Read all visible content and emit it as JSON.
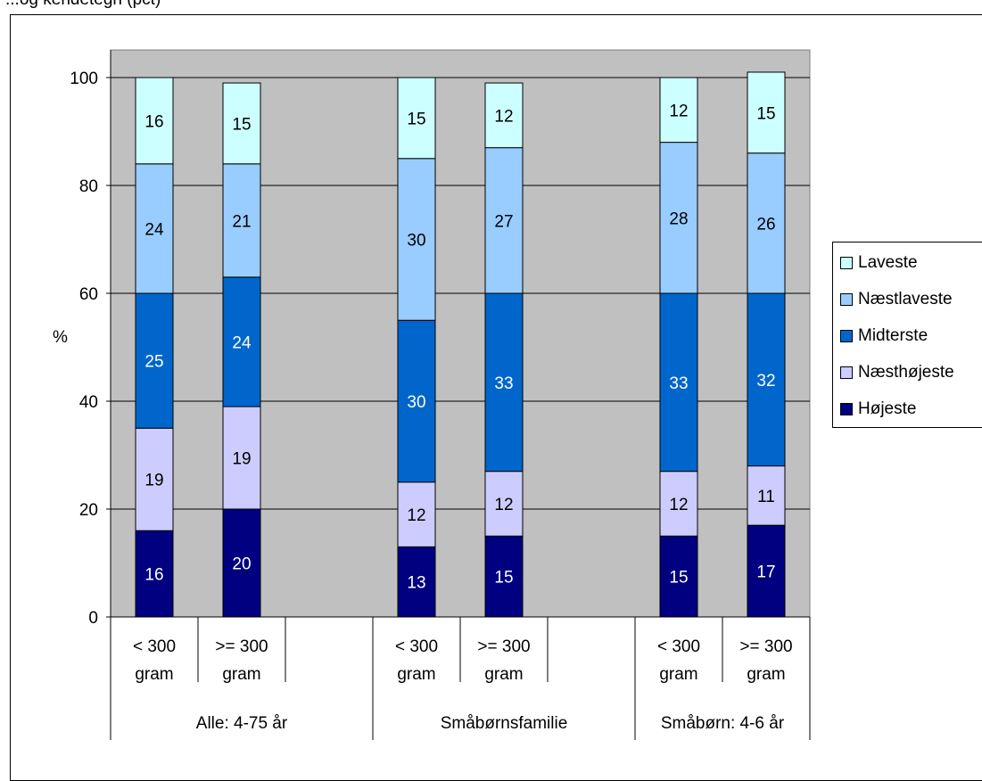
{
  "caption": "...og kendetegn (pct)",
  "chart_data": {
    "type": "bar",
    "stacked": true,
    "ylabel": "%",
    "ylim": [
      0,
      100
    ],
    "yticks": [
      0,
      20,
      40,
      60,
      80,
      100
    ],
    "grid": true,
    "plot_background": "#c0c0c0",
    "legend_position": "right",
    "groups": [
      "Alle: 4-75 år",
      "Småbørnsfamilie",
      "Småbørn: 4-6 år"
    ],
    "categories": [
      "< 300 gram",
      ">= 300 gram",
      "< 300 gram",
      ">= 300 gram",
      "< 300 gram",
      ">= 300 gram"
    ],
    "category_lines": [
      [
        "< 300",
        "gram"
      ],
      [
        ">= 300",
        "gram"
      ]
    ],
    "series": [
      {
        "name": "Højeste",
        "color": "#000080",
        "text_color": "#ffffff",
        "values": [
          16,
          20,
          13,
          15,
          15,
          17
        ]
      },
      {
        "name": "Næsthøjeste",
        "color": "#ccccff",
        "text_color": "#000000",
        "values": [
          19,
          19,
          12,
          12,
          12,
          11
        ]
      },
      {
        "name": "Midterste",
        "color": "#0066cc",
        "text_color": "#ffffff",
        "values": [
          25,
          24,
          30,
          33,
          33,
          32
        ]
      },
      {
        "name": "Næstlaveste",
        "color": "#99ccff",
        "text_color": "#000000",
        "values": [
          24,
          21,
          30,
          27,
          28,
          26
        ]
      },
      {
        "name": "Laveste",
        "color": "#ccffff",
        "text_color": "#000000",
        "values": [
          16,
          15,
          15,
          12,
          12,
          15
        ]
      }
    ],
    "legend_order": [
      "Laveste",
      "Næstlaveste",
      "Midterste",
      "Næsthøjeste",
      "Højeste"
    ]
  }
}
